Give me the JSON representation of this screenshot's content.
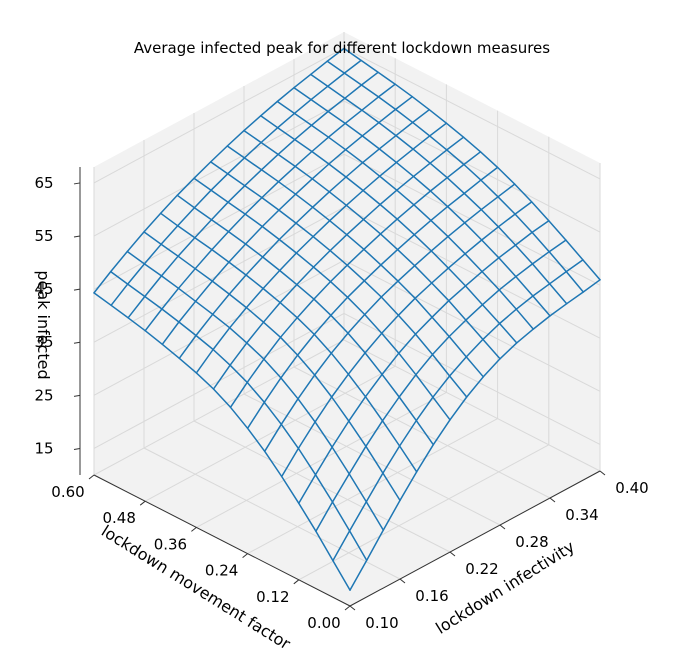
{
  "chart_data": {
    "type": "surface-wireframe",
    "title": "Average infected peak for different lockdown measures",
    "xlabel": "lockdown infectivity",
    "ylabel": "lockdown movement factor",
    "zlabel": "peak infected",
    "xlim": [
      0.1,
      0.4
    ],
    "ylim": [
      0.0,
      0.6
    ],
    "zlim": [
      10,
      68
    ],
    "x_ticks": [
      "0.10",
      "0.16",
      "0.22",
      "0.28",
      "0.34",
      "0.40"
    ],
    "y_ticks": [
      "0.00",
      "0.12",
      "0.24",
      "0.36",
      "0.48",
      "0.60"
    ],
    "z_ticks": [
      "15",
      "25",
      "35",
      "45",
      "55",
      "65"
    ],
    "x": [
      0.1,
      0.12,
      0.14,
      0.16,
      0.18,
      0.2,
      0.22,
      0.24,
      0.26,
      0.28,
      0.3,
      0.32,
      0.34,
      0.36,
      0.38,
      0.4
    ],
    "y": [
      0.0,
      0.04,
      0.08,
      0.12,
      0.16,
      0.2,
      0.24,
      0.28,
      0.32,
      0.36,
      0.4,
      0.44,
      0.48,
      0.52,
      0.56,
      0.6
    ],
    "z_note_rows_are_y_cols_are_x": true,
    "z": [
      [
        13,
        16.9,
        20.9,
        24.8,
        28.5,
        31.9,
        34.9,
        37.5,
        39.6,
        41.3,
        42.6,
        43.5,
        44.3,
        44.9,
        45.4,
        46
      ],
      [
        16.9,
        20.8,
        24.6,
        28.3,
        31.7,
        34.8,
        37.5,
        39.8,
        41.7,
        43.3,
        44.6,
        45.6,
        46.4,
        47,
        47.6,
        48.1
      ],
      [
        20.8,
        24.6,
        28.2,
        31.7,
        34.8,
        37.6,
        40.1,
        42.2,
        43.9,
        45.3,
        46.5,
        47.6,
        48.4,
        49.1,
        49.7,
        50.2
      ],
      [
        24.4,
        28.1,
        31.6,
        34.8,
        37.7,
        40.2,
        42.5,
        44.4,
        45.9,
        47.3,
        48.4,
        49.4,
        50.3,
        51,
        51.7,
        52.2
      ],
      [
        27.8,
        31.4,
        34.7,
        37.7,
        40.3,
        42.6,
        44.6,
        46.3,
        47.8,
        49,
        50.1,
        51.1,
        52,
        52.8,
        53.5,
        54.1
      ],
      [
        30.9,
        34.3,
        37.4,
        40.2,
        42.6,
        44.7,
        46.5,
        48.1,
        49.4,
        50.6,
        51.7,
        52.7,
        53.6,
        54.4,
        55.1,
        55.8
      ],
      [
        33.6,
        36.8,
        39.7,
        42.3,
        44.5,
        46.4,
        48.1,
        49.5,
        50.8,
        52,
        53.1,
        54.1,
        55,
        55.8,
        56.6,
        57.3
      ],
      [
        35.9,
        38.9,
        41.6,
        44,
        46,
        47.8,
        49.4,
        50.8,
        52.1,
        53.3,
        54.4,
        55.4,
        56.3,
        57.1,
        57.9,
        58.6
      ],
      [
        37.7,
        40.5,
        43,
        45.2,
        47.2,
        48.9,
        50.5,
        51.9,
        53.2,
        54.4,
        55.5,
        56.5,
        57.4,
        58.2,
        59,
        59.7
      ],
      [
        39.1,
        41.8,
        44.2,
        46.3,
        48.2,
        49.9,
        51.5,
        52.9,
        54.2,
        55.4,
        56.5,
        57.5,
        58.4,
        59.2,
        60,
        60.7
      ],
      [
        40.2,
        42.8,
        45.1,
        47.2,
        49.1,
        50.8,
        52.4,
        53.8,
        55.1,
        56.3,
        57.4,
        58.4,
        59.3,
        60.1,
        60.9,
        61.6
      ],
      [
        41.2,
        43.7,
        45.9,
        48,
        49.9,
        51.6,
        53.2,
        54.6,
        55.9,
        57.1,
        58.2,
        59.2,
        60.1,
        60.9,
        61.7,
        62.4
      ],
      [
        42.1,
        44.5,
        46.7,
        48.7,
        50.6,
        52.3,
        53.9,
        55.3,
        56.6,
        57.8,
        58.9,
        59.9,
        60.8,
        61.6,
        62.4,
        63.1
      ],
      [
        42.9,
        45.2,
        47.4,
        49.4,
        51.2,
        52.9,
        54.5,
        55.9,
        57.2,
        58.4,
        59.5,
        60.5,
        61.4,
        62.2,
        63,
        63.7
      ],
      [
        43.6,
        45.9,
        48,
        50,
        51.8,
        53.5,
        55.1,
        56.5,
        57.8,
        59,
        60.1,
        61.1,
        62,
        62.8,
        63.6,
        64.3
      ],
      [
        44.3,
        46.6,
        48.7,
        50.7,
        52.5,
        54.2,
        55.7,
        57.1,
        58.4,
        59.6,
        60.7,
        61.7,
        62.6,
        63.4,
        64.2,
        64.9
      ]
    ],
    "grid": true,
    "pane_color": "#f2f2f2",
    "grid_color": "#d9d9d9",
    "line_color": "#1f77b4"
  }
}
